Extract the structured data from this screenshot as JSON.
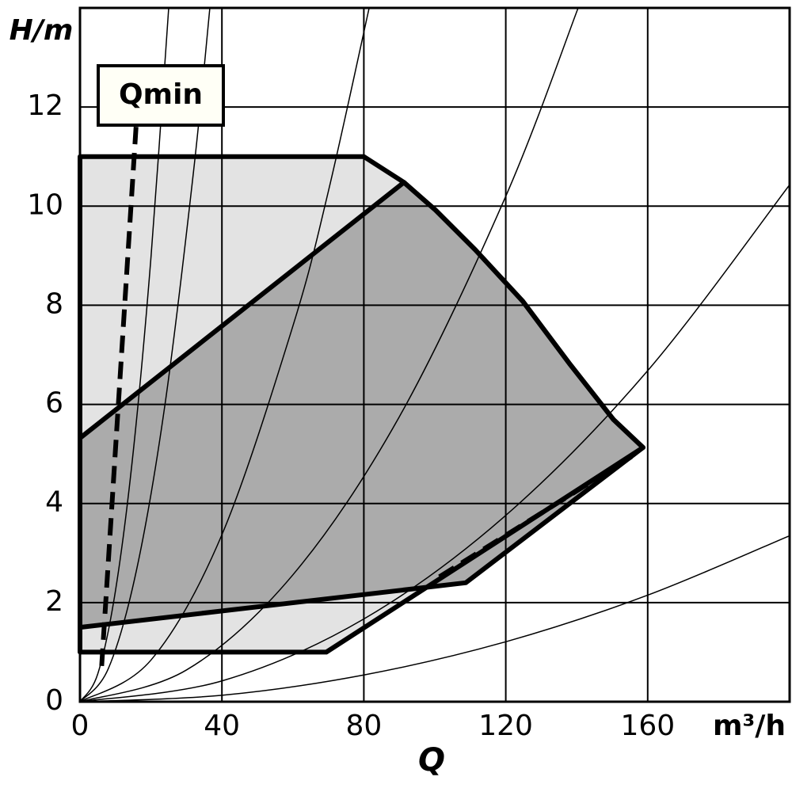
{
  "chart_data": {
    "type": "area",
    "y_label": "H/m",
    "x_unit": "m³/h",
    "x_label": "Q",
    "annotation": "Qmin",
    "xlim": [
      0,
      200
    ],
    "ylim": [
      0,
      14
    ],
    "xticks": [
      0,
      40,
      80,
      120,
      160
    ],
    "yticks": [
      0,
      2,
      4,
      6,
      8,
      10,
      12
    ],
    "grid": true,
    "regions": [
      {
        "color": "#e3e3e3",
        "x": [
          0,
          80,
          91.3,
          100.2,
          111.4,
          124.8,
          138.2,
          150.4,
          158.7,
          69.4,
          0
        ],
        "values": [
          11,
          11,
          10.48,
          9.92,
          9.12,
          8.08,
          6.8,
          5.69,
          5.13,
          1,
          1
        ]
      },
      {
        "color": "#ababab",
        "x": [
          0,
          91.3,
          100.2,
          111.4,
          124.8,
          138.2,
          150.4,
          158.7,
          108.7,
          0
        ],
        "values": [
          5.32,
          10.48,
          9.92,
          9.12,
          8.08,
          6.8,
          5.69,
          5.13,
          2.4,
          1.5
        ]
      }
    ],
    "curves": [
      {
        "x": [
          0,
          5,
          10,
          15,
          20,
          25
        ],
        "values": [
          0,
          0.56,
          2.24,
          5.04,
          8.96,
          14
        ]
      },
      {
        "x": [
          0,
          8,
          16,
          24,
          32,
          36.6
        ],
        "values": [
          0,
          0.67,
          2.68,
          6.02,
          10.7,
          14
        ]
      },
      {
        "x": [
          0,
          20,
          40,
          60,
          70,
          81.5
        ],
        "values": [
          0,
          0.84,
          3.37,
          7.58,
          10.3,
          14
        ]
      },
      {
        "x": [
          0,
          30,
          60,
          90,
          120,
          140.4
        ],
        "values": [
          0,
          0.64,
          2.56,
          5.75,
          10.2,
          14
        ]
      },
      {
        "x": [
          0,
          40,
          80,
          120,
          160,
          200
        ],
        "values": [
          0,
          0.42,
          1.67,
          3.76,
          6.68,
          10.43
        ]
      },
      {
        "x": [
          0,
          40,
          80,
          120,
          160,
          200
        ],
        "values": [
          0,
          0.13,
          0.54,
          1.21,
          2.15,
          3.35
        ]
      }
    ],
    "dashed": [
      {
        "x": [
          15.8,
          6
        ],
        "values": [
          11.6,
          0.6
        ]
      },
      {
        "x": [
          101.3,
          156
        ],
        "values": [
          2.52,
          4.97
        ]
      }
    ]
  }
}
